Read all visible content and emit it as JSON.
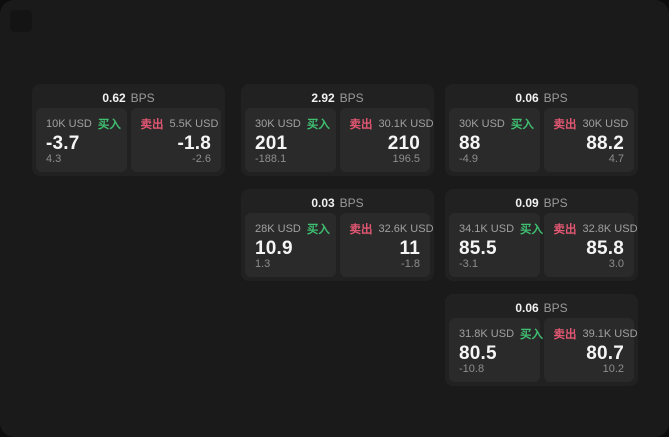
{
  "page": {
    "canvas_bg": "#1a1a1a",
    "card_bg": "#212121",
    "panel_bg": "#2a2a2a"
  },
  "labels": {
    "bps_suffix": "BPS",
    "buy": "买入",
    "sell": "卖出"
  },
  "colors": {
    "buy": "#3fbf70",
    "sell": "#e25672"
  },
  "cards": [
    {
      "bps": "0.62",
      "row": 1,
      "col": 1,
      "buy": {
        "size": "10K USD",
        "price": "-3.7",
        "delta": "4.3"
      },
      "sell": {
        "size": "5.5K USD",
        "price": "-1.8",
        "delta": "-2.6"
      }
    },
    {
      "bps": "2.92",
      "row": 1,
      "col": 2,
      "buy": {
        "size": "30K USD",
        "price": "201",
        "delta": "-188.1"
      },
      "sell": {
        "size": "30.1K USD",
        "price": "210",
        "delta": "196.5"
      }
    },
    {
      "bps": "0.06",
      "row": 1,
      "col": 3,
      "buy": {
        "size": "30K USD",
        "price": "88",
        "delta": "-4.9"
      },
      "sell": {
        "size": "30K USD",
        "price": "88.2",
        "delta": "4.7"
      }
    },
    {
      "bps": "0.03",
      "row": 2,
      "col": 2,
      "buy": {
        "size": "28K USD",
        "price": "10.9",
        "delta": "1.3"
      },
      "sell": {
        "size": "32.6K USD",
        "price": "11",
        "delta": "-1.8"
      }
    },
    {
      "bps": "0.09",
      "row": 2,
      "col": 3,
      "buy": {
        "size": "34.1K USD",
        "price": "85.5",
        "delta": "-3.1"
      },
      "sell": {
        "size": "32.8K USD",
        "price": "85.8",
        "delta": "3.0"
      }
    },
    {
      "bps": "0.06",
      "row": 3,
      "col": 3,
      "buy": {
        "size": "31.8K USD",
        "price": "80.5",
        "delta": "-10.8"
      },
      "sell": {
        "size": "39.1K USD",
        "price": "80.7",
        "delta": "10.2"
      }
    }
  ]
}
